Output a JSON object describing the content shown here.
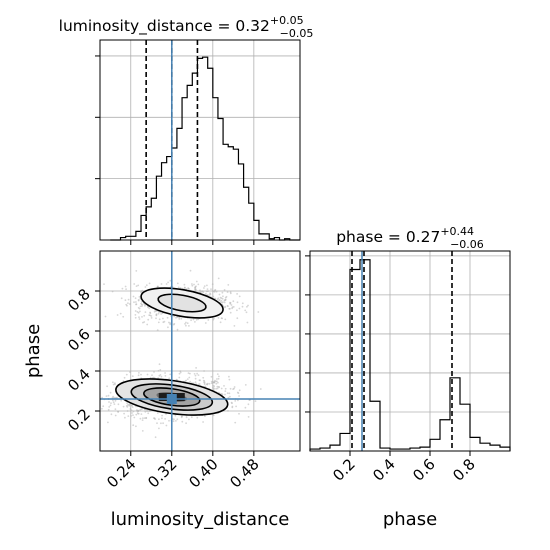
{
  "chart_data": [
    {
      "type": "histogram",
      "panel": "top-left",
      "parameter": "luminosity_distance",
      "title": {
        "prefix": "luminosity_distance = 0.32",
        "sup": "+0.05",
        "sub": "−0.05"
      },
      "bin_edges": [
        0.2,
        0.21,
        0.22,
        0.23,
        0.24,
        0.25,
        0.26,
        0.27,
        0.28,
        0.29,
        0.3,
        0.31,
        0.32,
        0.33,
        0.34,
        0.35,
        0.36,
        0.37,
        0.38,
        0.39,
        0.4,
        0.41,
        0.42,
        0.43,
        0.44,
        0.45,
        0.46,
        0.47,
        0.48,
        0.49,
        0.5,
        0.51,
        0.52,
        0.53,
        0.54,
        0.55,
        0.56,
        0.57
      ],
      "counts": [
        0,
        0,
        2,
        3,
        3,
        7,
        20,
        27,
        34,
        52,
        63,
        68,
        75,
        91,
        116,
        126,
        136,
        148,
        149,
        140,
        116,
        99,
        78,
        76,
        74,
        62,
        43,
        30,
        16,
        5,
        5,
        1,
        2,
        0,
        1,
        0,
        0
      ],
      "xlim": [
        0.18,
        0.57
      ],
      "ylim": [
        0,
        163
      ],
      "x_ticks": [
        0.24,
        0.32,
        0.4,
        0.48
      ],
      "quantile_lines": [
        0.27,
        0.32,
        0.37
      ],
      "truth": 0.32,
      "grid": true
    },
    {
      "type": "scatter",
      "panel": "bottom-left",
      "x_param": "luminosity_distance",
      "y_param": "phase",
      "xlabel": "luminosity_distance",
      "ylabel": "phase",
      "xlim": [
        0.18,
        0.57
      ],
      "ylim": [
        0.0,
        1.0
      ],
      "x_ticks": [
        0.24,
        0.32,
        0.4,
        0.48
      ],
      "x_tick_labels": [
        "0.24",
        "0.32",
        "0.40",
        "0.48"
      ],
      "y_ticks": [
        0.2,
        0.4,
        0.6,
        0.8
      ],
      "y_tick_labels": [
        "0.2",
        "0.4",
        "0.6",
        "0.8"
      ],
      "truth": {
        "x": 0.32,
        "y": 0.26
      },
      "modes": [
        {
          "x_center": 0.32,
          "y_center": 0.27,
          "x_spread": 0.055,
          "y_spread": 0.05
        },
        {
          "x_center": 0.34,
          "y_center": 0.74,
          "x_spread": 0.045,
          "y_spread": 0.045
        }
      ],
      "grid": true
    },
    {
      "type": "histogram",
      "panel": "bottom-right",
      "parameter": "phase",
      "xlabel": "phase",
      "title": {
        "prefix": "phase = 0.27",
        "sup": "+0.44",
        "sub": "−0.06"
      },
      "bin_edges": [
        0.0,
        0.05,
        0.1,
        0.15,
        0.2,
        0.25,
        0.3,
        0.35,
        0.4,
        0.45,
        0.5,
        0.55,
        0.6,
        0.65,
        0.7,
        0.75,
        0.8,
        0.85,
        0.9,
        0.95,
        1.0
      ],
      "counts": [
        2,
        3,
        6,
        18,
        186,
        196,
        51,
        3,
        2,
        2,
        3,
        4,
        12,
        32,
        75,
        48,
        14,
        8,
        6,
        4
      ],
      "xlim": [
        0.0,
        1.0
      ],
      "ylim": [
        0,
        205
      ],
      "x_ticks": [
        0.2,
        0.4,
        0.6,
        0.8
      ],
      "x_tick_labels": [
        "0.2",
        "0.4",
        "0.6",
        "0.8"
      ],
      "quantile_lines": [
        0.21,
        0.27,
        0.71
      ],
      "truth": 0.26,
      "grid": true
    }
  ]
}
